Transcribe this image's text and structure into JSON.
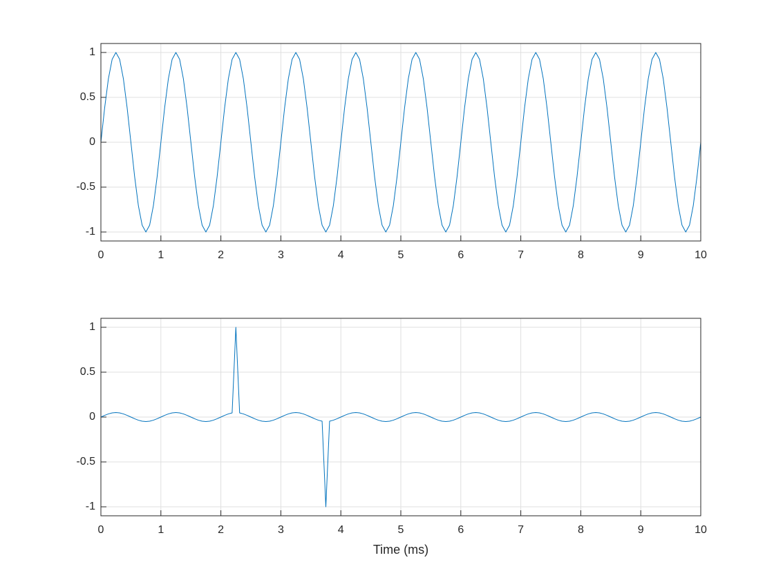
{
  "chart_data": [
    {
      "type": "line",
      "x": [
        0,
        0.0625,
        0.125,
        0.1875,
        0.25,
        0.3125,
        0.375,
        0.4375,
        0.5,
        0.5625,
        0.625,
        0.6875,
        0.75,
        0.8125,
        0.875,
        0.9375,
        1,
        1.0625,
        1.125,
        1.1875,
        1.25,
        1.3125,
        1.375,
        1.4375,
        1.5,
        1.5625,
        1.625,
        1.6875,
        1.75,
        1.8125,
        1.875,
        1.9375,
        2,
        2.0625,
        2.125,
        2.1875,
        2.25,
        2.3125,
        2.375,
        2.4375,
        2.5,
        2.5625,
        2.625,
        2.6875,
        2.75,
        2.8125,
        2.875,
        2.9375,
        3,
        3.0625,
        3.125,
        3.1875,
        3.25,
        3.3125,
        3.375,
        3.4375,
        3.5,
        3.5625,
        3.625,
        3.6875,
        3.75,
        3.8125,
        3.875,
        3.9375,
        4,
        4.0625,
        4.125,
        4.1875,
        4.25,
        4.3125,
        4.375,
        4.4375,
        4.5,
        4.5625,
        4.625,
        4.6875,
        4.75,
        4.8125,
        4.875,
        4.9375,
        5,
        5.0625,
        5.125,
        5.1875,
        5.25,
        5.3125,
        5.375,
        5.4375,
        5.5,
        5.5625,
        5.625,
        5.6875,
        5.75,
        5.8125,
        5.875,
        5.9375,
        6,
        6.0625,
        6.125,
        6.1875,
        6.25,
        6.3125,
        6.375,
        6.4375,
        6.5,
        6.5625,
        6.625,
        6.6875,
        6.75,
        6.8125,
        6.875,
        6.9375,
        7,
        7.0625,
        7.125,
        7.1875,
        7.25,
        7.3125,
        7.375,
        7.4375,
        7.5,
        7.5625,
        7.625,
        7.6875,
        7.75,
        7.8125,
        7.875,
        7.9375,
        8,
        8.0625,
        8.125,
        8.1875,
        8.25,
        8.3125,
        8.375,
        8.4375,
        8.5,
        8.5625,
        8.625,
        8.6875,
        8.75,
        8.8125,
        8.875,
        8.9375,
        9,
        9.0625,
        9.125,
        9.1875,
        9.25,
        9.3125,
        9.375,
        9.4375,
        9.5,
        9.5625,
        9.625,
        9.6875,
        9.75,
        9.8125,
        9.875,
        9.9375,
        10
      ],
      "values": [
        0,
        0.383,
        0.707,
        0.924,
        1,
        0.924,
        0.707,
        0.383,
        0,
        -0.383,
        -0.707,
        -0.924,
        -1,
        -0.924,
        -0.707,
        -0.383,
        0,
        0.383,
        0.707,
        0.924,
        1,
        0.924,
        0.707,
        0.383,
        0,
        -0.383,
        -0.707,
        -0.924,
        -1,
        -0.924,
        -0.707,
        -0.383,
        0,
        0.383,
        0.707,
        0.924,
        1,
        0.924,
        0.707,
        0.383,
        0,
        -0.383,
        -0.707,
        -0.924,
        -1,
        -0.924,
        -0.707,
        -0.383,
        0,
        0.383,
        0.707,
        0.924,
        1,
        0.924,
        0.707,
        0.383,
        0,
        -0.383,
        -0.707,
        -0.924,
        -1,
        -0.924,
        -0.707,
        -0.383,
        0,
        0.383,
        0.707,
        0.924,
        1,
        0.924,
        0.707,
        0.383,
        0,
        -0.383,
        -0.707,
        -0.924,
        -1,
        -0.924,
        -0.707,
        -0.383,
        0,
        0.383,
        0.707,
        0.924,
        1,
        0.924,
        0.707,
        0.383,
        0,
        -0.383,
        -0.707,
        -0.924,
        -1,
        -0.924,
        -0.707,
        -0.383,
        0,
        0.383,
        0.707,
        0.924,
        1,
        0.924,
        0.707,
        0.383,
        0,
        -0.383,
        -0.707,
        -0.924,
        -1,
        -0.924,
        -0.707,
        -0.383,
        0,
        0.383,
        0.707,
        0.924,
        1,
        0.924,
        0.707,
        0.383,
        0,
        -0.383,
        -0.707,
        -0.924,
        -1,
        -0.924,
        -0.707,
        -0.383,
        0,
        0.383,
        0.707,
        0.924,
        1,
        0.924,
        0.707,
        0.383,
        0,
        -0.383,
        -0.707,
        -0.924,
        -1,
        -0.924,
        -0.707,
        -0.383,
        0,
        0.383,
        0.707,
        0.924,
        1,
        0.924,
        0.707,
        0.383,
        0,
        -0.383,
        -0.707,
        -0.924,
        -1,
        -0.924,
        -0.707,
        -0.383,
        0
      ],
      "color": "#0072bd",
      "xlim": [
        0,
        10
      ],
      "xticks": [
        0,
        1,
        2,
        3,
        4,
        5,
        6,
        7,
        8,
        9,
        10
      ],
      "ylim": [
        -1.1,
        1.1
      ],
      "yticks": [
        -1,
        -0.5,
        0,
        0.5,
        1
      ],
      "grid": true
    },
    {
      "type": "line",
      "x": [
        0,
        0.0625,
        0.125,
        0.1875,
        0.25,
        0.3125,
        0.375,
        0.4375,
        0.5,
        0.5625,
        0.625,
        0.6875,
        0.75,
        0.8125,
        0.875,
        0.9375,
        1,
        1.0625,
        1.125,
        1.1875,
        1.25,
        1.3125,
        1.375,
        1.4375,
        1.5,
        1.5625,
        1.625,
        1.6875,
        1.75,
        1.8125,
        1.875,
        1.9375,
        2,
        2.0625,
        2.125,
        2.1875,
        2.25,
        2.3125,
        2.375,
        2.4375,
        2.5,
        2.5625,
        2.625,
        2.6875,
        2.75,
        2.8125,
        2.875,
        2.9375,
        3,
        3.0625,
        3.125,
        3.1875,
        3.25,
        3.3125,
        3.375,
        3.4375,
        3.5,
        3.5625,
        3.625,
        3.6875,
        3.75,
        3.8125,
        3.875,
        3.9375,
        4,
        4.0625,
        4.125,
        4.1875,
        4.25,
        4.3125,
        4.375,
        4.4375,
        4.5,
        4.5625,
        4.625,
        4.6875,
        4.75,
        4.8125,
        4.875,
        4.9375,
        5,
        5.0625,
        5.125,
        5.1875,
        5.25,
        5.3125,
        5.375,
        5.4375,
        5.5,
        5.5625,
        5.625,
        5.6875,
        5.75,
        5.8125,
        5.875,
        5.9375,
        6,
        6.0625,
        6.125,
        6.1875,
        6.25,
        6.3125,
        6.375,
        6.4375,
        6.5,
        6.5625,
        6.625,
        6.6875,
        6.75,
        6.8125,
        6.875,
        6.9375,
        7,
        7.0625,
        7.125,
        7.1875,
        7.25,
        7.3125,
        7.375,
        7.4375,
        7.5,
        7.5625,
        7.625,
        7.6875,
        7.75,
        7.8125,
        7.875,
        7.9375,
        8,
        8.0625,
        8.125,
        8.1875,
        8.25,
        8.3125,
        8.375,
        8.4375,
        8.5,
        8.5625,
        8.625,
        8.6875,
        8.75,
        8.8125,
        8.875,
        8.9375,
        9,
        9.0625,
        9.125,
        9.1875,
        9.25,
        9.3125,
        9.375,
        9.4375,
        9.5,
        9.5625,
        9.625,
        9.6875,
        9.75,
        9.8125,
        9.875,
        9.9375,
        10
      ],
      "values": [
        0,
        0.019,
        0.035,
        0.046,
        0.05,
        0.046,
        0.035,
        0.019,
        0,
        -0.019,
        -0.035,
        -0.046,
        -0.05,
        -0.046,
        -0.035,
        -0.019,
        0,
        0.019,
        0.035,
        0.046,
        0.05,
        0.046,
        0.035,
        0.019,
        0,
        -0.019,
        -0.035,
        -0.046,
        -0.05,
        -0.046,
        -0.035,
        -0.019,
        0,
        0.019,
        0.035,
        0.046,
        1,
        0.046,
        0.035,
        0.019,
        0,
        -0.019,
        -0.035,
        -0.046,
        -0.05,
        -0.046,
        -0.035,
        -0.019,
        0,
        0.019,
        0.035,
        0.046,
        0.05,
        0.046,
        0.035,
        0.019,
        0,
        -0.019,
        -0.035,
        -0.046,
        -1,
        -0.046,
        -0.035,
        -0.019,
        0,
        0.019,
        0.035,
        0.046,
        0.05,
        0.046,
        0.035,
        0.019,
        0,
        -0.019,
        -0.035,
        -0.046,
        -0.05,
        -0.046,
        -0.035,
        -0.019,
        0,
        0.019,
        0.035,
        0.046,
        0.05,
        0.046,
        0.035,
        0.019,
        0,
        -0.019,
        -0.035,
        -0.046,
        -0.05,
        -0.046,
        -0.035,
        -0.019,
        0,
        0.019,
        0.035,
        0.046,
        0.05,
        0.046,
        0.035,
        0.019,
        0,
        -0.019,
        -0.035,
        -0.046,
        -0.05,
        -0.046,
        -0.035,
        -0.019,
        0,
        0.019,
        0.035,
        0.046,
        0.05,
        0.046,
        0.035,
        0.019,
        0,
        -0.019,
        -0.035,
        -0.046,
        -0.05,
        -0.046,
        -0.035,
        -0.019,
        0,
        0.019,
        0.035,
        0.046,
        0.05,
        0.046,
        0.035,
        0.019,
        0,
        -0.019,
        -0.035,
        -0.046,
        -0.05,
        -0.046,
        -0.035,
        -0.019,
        0,
        0.019,
        0.035,
        0.046,
        0.05,
        0.046,
        0.035,
        0.019,
        0,
        -0.019,
        -0.035,
        -0.046,
        -0.05,
        -0.046,
        -0.035,
        -0.019,
        0
      ],
      "color": "#0072bd",
      "xlabel": "Time (ms)",
      "xlim": [
        0,
        10
      ],
      "xticks": [
        0,
        1,
        2,
        3,
        4,
        5,
        6,
        7,
        8,
        9,
        10
      ],
      "ylim": [
        -1.1,
        1.1
      ],
      "yticks": [
        -1,
        -0.5,
        0,
        0.5,
        1
      ],
      "grid": true
    }
  ]
}
